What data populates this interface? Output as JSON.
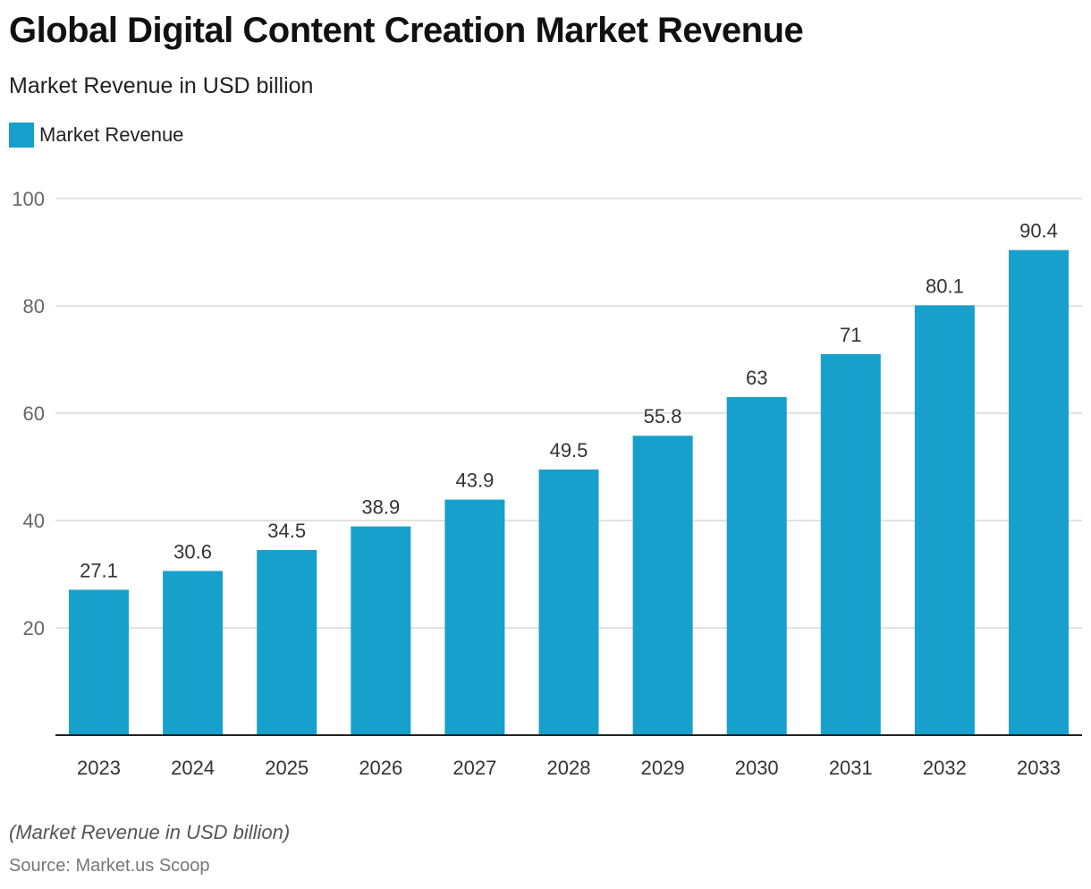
{
  "title": "Global Digital Content Creation Market Revenue",
  "subtitle": "Market Revenue in USD billion",
  "note": "(Market Revenue in USD billion)",
  "source": "Source: Market.us Scoop",
  "colors": {
    "bar": "#18a0cc",
    "grid": "#d9d9d9",
    "axis": "#222222"
  },
  "chart_data": {
    "type": "bar",
    "title": "Global Digital Content Creation Market Revenue",
    "subtitle": "Market Revenue in USD billion",
    "xlabel": "",
    "ylabel": "",
    "categories": [
      "2023",
      "2024",
      "2025",
      "2026",
      "2027",
      "2028",
      "2029",
      "2030",
      "2031",
      "2032",
      "2033"
    ],
    "series": [
      {
        "name": "Market Revenue",
        "values": [
          27.1,
          30.6,
          34.5,
          38.9,
          43.9,
          49.5,
          55.8,
          63,
          71,
          80.1,
          90.4
        ]
      }
    ],
    "ylim": [
      0,
      100
    ],
    "yticks": [
      20,
      40,
      60,
      80,
      100
    ],
    "grid": true,
    "legend": "top-left",
    "data_labels": true
  }
}
